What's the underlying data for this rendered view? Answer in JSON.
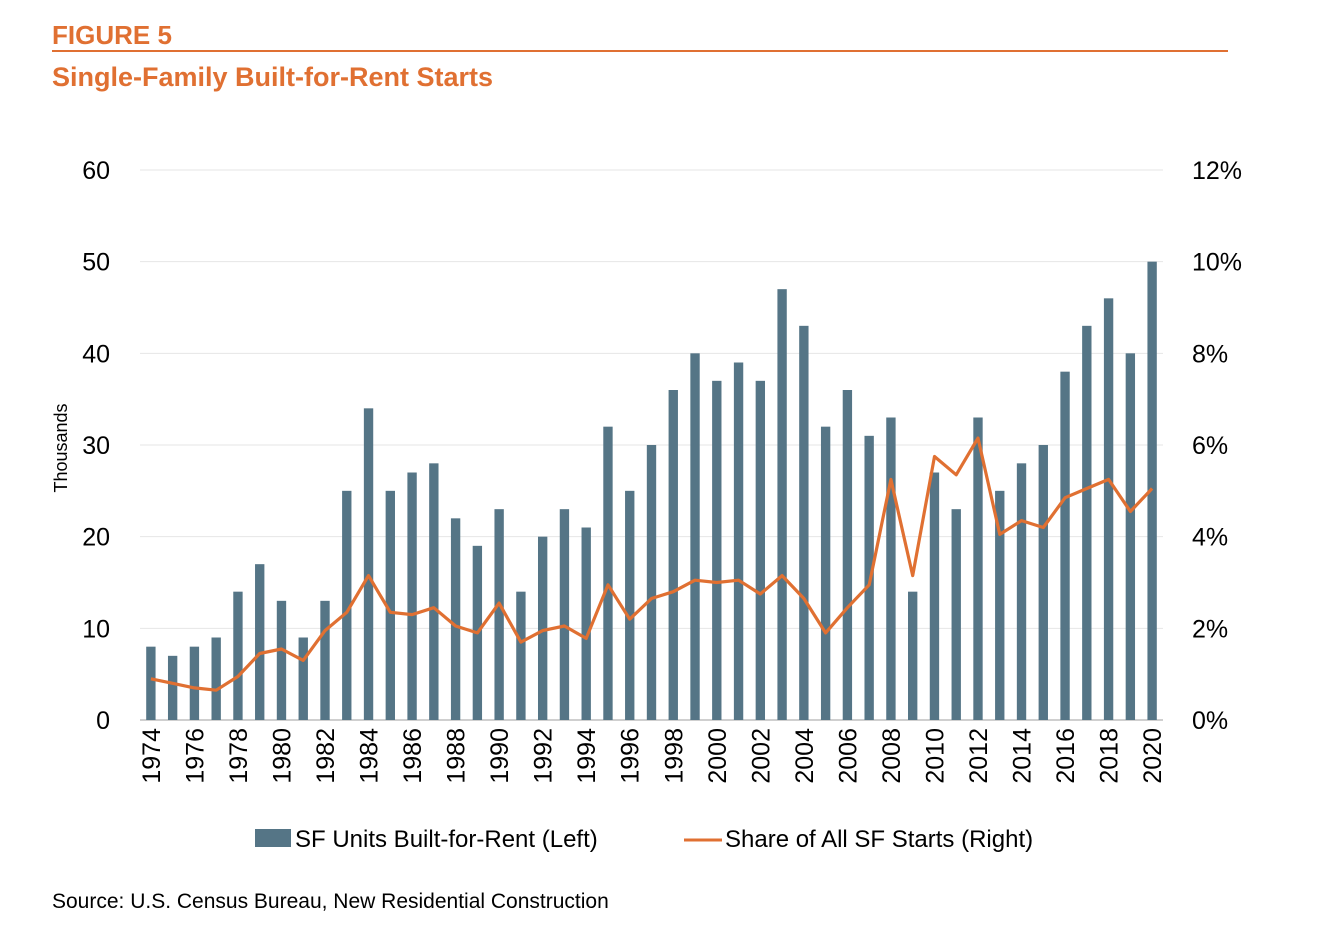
{
  "header": {
    "figure_label": "FIGURE 5",
    "title": "Single-Family Built-for-Rent Starts"
  },
  "source": "Source: U.S. Census Bureau, New Residential Construction",
  "colors": {
    "accent": "#e07032",
    "bar": "#557586",
    "line": "#e07032",
    "grid": "#e6e6e6"
  },
  "chart_data": {
    "type": "bar",
    "categories": [
      1974,
      1975,
      1976,
      1977,
      1978,
      1979,
      1980,
      1981,
      1982,
      1983,
      1984,
      1985,
      1986,
      1987,
      1988,
      1989,
      1990,
      1991,
      1992,
      1993,
      1994,
      1995,
      1996,
      1997,
      1998,
      1999,
      2000,
      2001,
      2002,
      2003,
      2004,
      2005,
      2006,
      2007,
      2008,
      2009,
      2010,
      2011,
      2012,
      2013,
      2014,
      2015,
      2016,
      2017,
      2018,
      2019,
      2020
    ],
    "x_tick_labels": [
      "1974",
      "1976",
      "1978",
      "1980",
      "1982",
      "1984",
      "1986",
      "1988",
      "1990",
      "1992",
      "1994",
      "1996",
      "1998",
      "2000",
      "2002",
      "2004",
      "2006",
      "2008",
      "2010",
      "2012",
      "2014",
      "2016",
      "2018",
      "2020"
    ],
    "ylabel": "Thousands",
    "ylim": [
      0,
      60
    ],
    "y_ticks": [
      "0",
      "10",
      "20",
      "30",
      "40",
      "50",
      "60"
    ],
    "y2lim": [
      0,
      0.12
    ],
    "y2_ticks": [
      "0%",
      "2%",
      "4%",
      "6%",
      "8%",
      "10%",
      "12%"
    ],
    "grid": true,
    "legend_position": "bottom",
    "series": [
      {
        "name": "SF Units Built-for-Rent (Left)",
        "type": "bar",
        "axis": "left",
        "values": [
          8,
          7,
          8,
          9,
          14,
          17,
          13,
          9,
          13,
          25,
          34,
          25,
          27,
          28,
          22,
          19,
          23,
          14,
          20,
          23,
          21,
          32,
          25,
          30,
          36,
          40,
          37,
          39,
          37,
          47,
          43,
          32,
          36,
          31,
          33,
          14,
          27,
          23,
          33,
          25,
          28,
          30,
          38,
          43,
          46,
          40,
          50
        ]
      },
      {
        "name": "Share of All SF Starts (Right)",
        "type": "line",
        "axis": "right",
        "values": [
          0.009,
          0.008,
          0.007,
          0.0065,
          0.0095,
          0.0145,
          0.0155,
          0.013,
          0.0195,
          0.0235,
          0.0315,
          0.0235,
          0.023,
          0.0245,
          0.0205,
          0.019,
          0.0255,
          0.017,
          0.0195,
          0.0205,
          0.0178,
          0.0295,
          0.022,
          0.0265,
          0.028,
          0.0305,
          0.03,
          0.0305,
          0.0275,
          0.0315,
          0.0265,
          0.019,
          0.0245,
          0.0295,
          0.0525,
          0.0315,
          0.0575,
          0.0535,
          0.0615,
          0.0405,
          0.0435,
          0.042,
          0.0485,
          0.0505,
          0.0525,
          0.0455,
          0.0505
        ]
      }
    ]
  }
}
